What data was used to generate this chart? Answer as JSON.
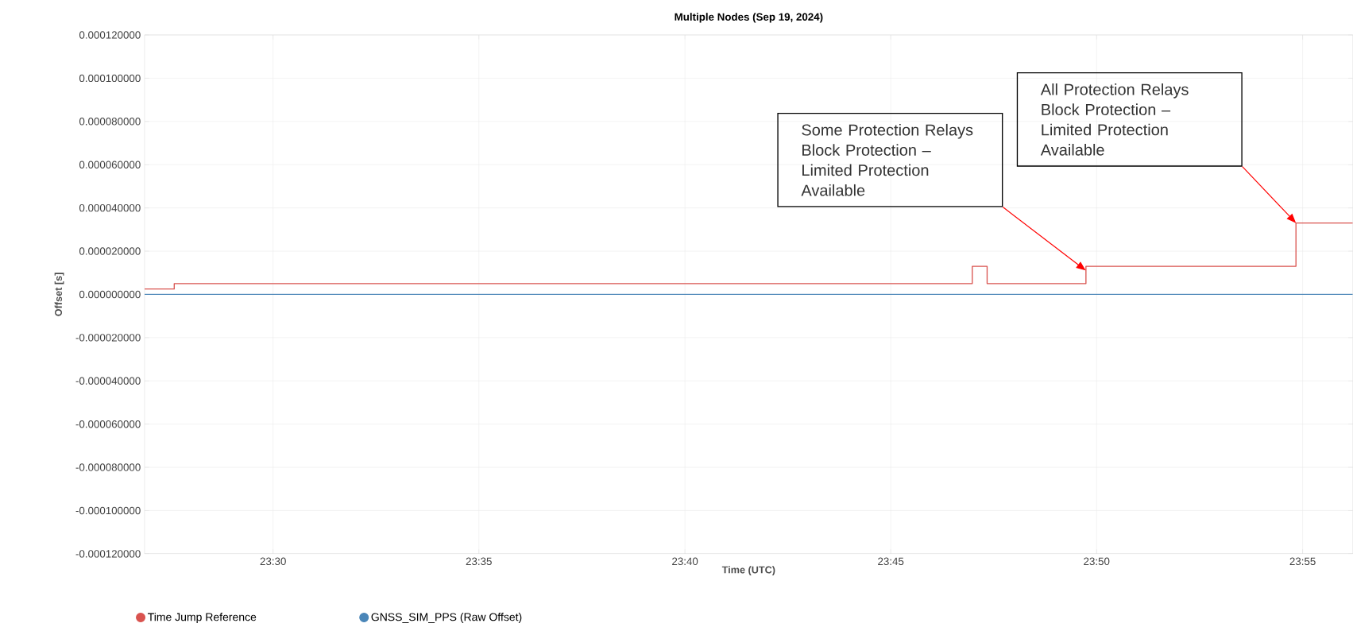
{
  "chart_data": {
    "type": "line",
    "title": "Multiple Nodes (Sep 19, 2024)",
    "xlabel": "Time (UTC)",
    "ylabel": "Offset [s]",
    "xlim": [
      23.448,
      23.937
    ],
    "xticks": [
      {
        "value": 23.5,
        "label": "23:30"
      },
      {
        "value": 23.5833,
        "label": "23:35"
      },
      {
        "value": 23.6667,
        "label": "23:40"
      },
      {
        "value": 23.75,
        "label": "23:45"
      },
      {
        "value": 23.8333,
        "label": "23:50"
      },
      {
        "value": 23.9167,
        "label": "23:55"
      }
    ],
    "ylim": [
      -0.00012,
      0.00012
    ],
    "yticks": [
      {
        "value": -0.00012,
        "label": "-0.000120000"
      },
      {
        "value": -0.0001,
        "label": "-0.000100000"
      },
      {
        "value": -8e-05,
        "label": "-0.000080000"
      },
      {
        "value": -6e-05,
        "label": "-0.000060000"
      },
      {
        "value": -4e-05,
        "label": "-0.000040000"
      },
      {
        "value": -2e-05,
        "label": "-0.000020000"
      },
      {
        "value": 0,
        "label": "0.000000000"
      },
      {
        "value": 2e-05,
        "label": "0.000020000"
      },
      {
        "value": 4e-05,
        "label": "0.000040000"
      },
      {
        "value": 6e-05,
        "label": "0.000060000"
      },
      {
        "value": 8e-05,
        "label": "0.000080000"
      },
      {
        "value": 0.0001,
        "label": "0.000100000"
      },
      {
        "value": 0.00012,
        "label": "0.000120000"
      }
    ],
    "series": [
      {
        "name": "Time Jump Reference",
        "type": "step",
        "color": "#d9534f",
        "x": [
          23.448,
          23.46,
          23.783,
          23.789,
          23.829,
          23.914,
          23.937
        ],
        "values": [
          2.5e-06,
          5e-06,
          1.3e-05,
          5e-06,
          1.3e-05,
          3.3e-05,
          3.3e-05
        ]
      },
      {
        "name": "GNSS_SIM_PPS (Raw Offset)",
        "color": "#4a86b8",
        "x": [
          23.448,
          23.937
        ],
        "values": [
          0,
          0
        ]
      }
    ],
    "annotations": [
      "Some Protection Relays Block Protection – Limited Protection Available",
      "All Protection Relays Block Protection – Limited Protection Available"
    ],
    "grid": true,
    "legend": "bottom"
  }
}
